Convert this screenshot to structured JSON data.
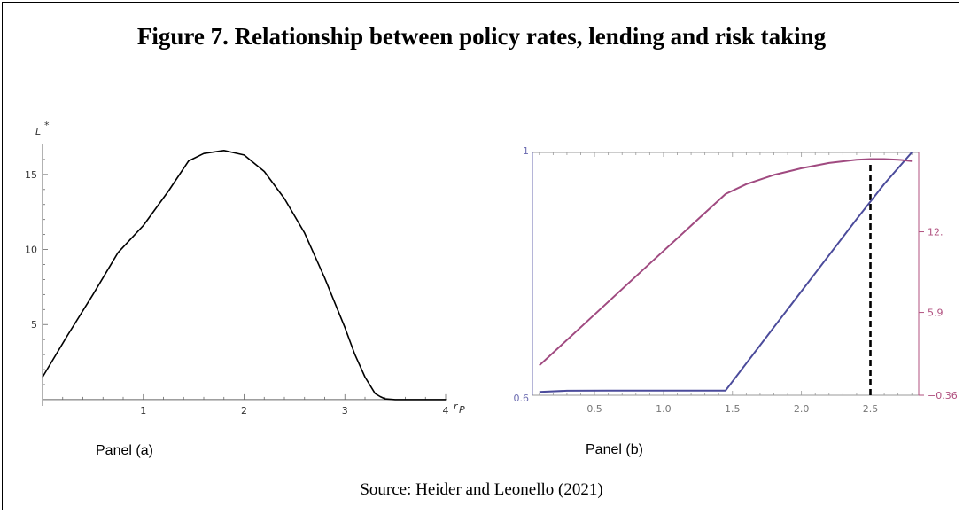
{
  "figure": {
    "title": "Figure 7. Relationship between policy rates, lending and risk taking",
    "source": "Source: Heider and Leonello (2021)",
    "panel_a_label": "Panel (a)",
    "panel_b_label": "Panel (b)"
  },
  "colors": {
    "panel_b_left_axis": "#6b6bb0",
    "panel_b_right_axis": "#b0507f",
    "series_blue": "#4b4b9b",
    "series_magenta": "#a04a80"
  },
  "chart_data": [
    {
      "type": "line",
      "panel": "a",
      "xlabel": "r_P",
      "ylabel": "L*",
      "xlim": [
        0,
        4
      ],
      "ylim": [
        -0.3,
        17
      ],
      "x_ticks": [
        1,
        2,
        3,
        4
      ],
      "y_ticks": [
        5,
        10,
        15
      ],
      "series": [
        {
          "x": [
            0,
            0.25,
            0.5,
            0.75,
            1.0,
            1.25,
            1.45,
            1.6,
            1.8,
            2.0,
            2.2,
            2.4,
            2.6,
            2.8,
            3.0,
            3.1,
            3.2,
            3.3,
            3.35,
            3.4,
            3.5,
            3.7,
            4.0
          ],
          "y": [
            1.5,
            4.3,
            7.0,
            9.8,
            11.6,
            13.9,
            15.9,
            16.4,
            16.6,
            16.3,
            15.2,
            13.4,
            11.1,
            8.1,
            4.8,
            3.0,
            1.5,
            0.4,
            0.2,
            0.05,
            0.0,
            0.0,
            0.0
          ]
        }
      ]
    },
    {
      "type": "line",
      "panel": "b",
      "xlim": [
        0.05,
        2.85
      ],
      "x_ticks": [
        0.5,
        1.0,
        1.5,
        2.0,
        2.5
      ],
      "x_tick_labels": [
        "0.5",
        "1.0",
        "1.5",
        "2.0",
        "2.5"
      ],
      "y_left_lim": [
        0.6,
        1.0
      ],
      "y_left_ticks": [
        0.6,
        1.0
      ],
      "y_left_tick_labels": [
        "0.6",
        "1"
      ],
      "y_right_lim": [
        -0.36,
        18.0
      ],
      "y_right_ticks": [
        -0.36,
        5.9,
        12.0
      ],
      "y_right_tick_labels": [
        "−0.36",
        "5.9",
        "12."
      ],
      "vline_x": 2.5,
      "series": [
        {
          "axis": "left",
          "x": [
            0.1,
            0.3,
            0.6,
            0.9,
            1.2,
            1.45,
            1.8,
            2.1,
            2.4,
            2.6,
            2.8
          ],
          "y": [
            0.6055,
            0.6075,
            0.6078,
            0.6078,
            0.6078,
            0.6078,
            0.712,
            0.801,
            0.89,
            0.948,
            1.0
          ]
        },
        {
          "axis": "right",
          "x": [
            0.1,
            0.4,
            0.7,
            1.0,
            1.25,
            1.45,
            1.6,
            1.8,
            2.0,
            2.2,
            2.4,
            2.5,
            2.6,
            2.7,
            2.8
          ],
          "y": [
            1.9,
            4.78,
            7.67,
            10.55,
            12.95,
            14.86,
            15.6,
            16.3,
            16.8,
            17.2,
            17.45,
            17.5,
            17.5,
            17.45,
            17.35
          ]
        }
      ]
    }
  ]
}
